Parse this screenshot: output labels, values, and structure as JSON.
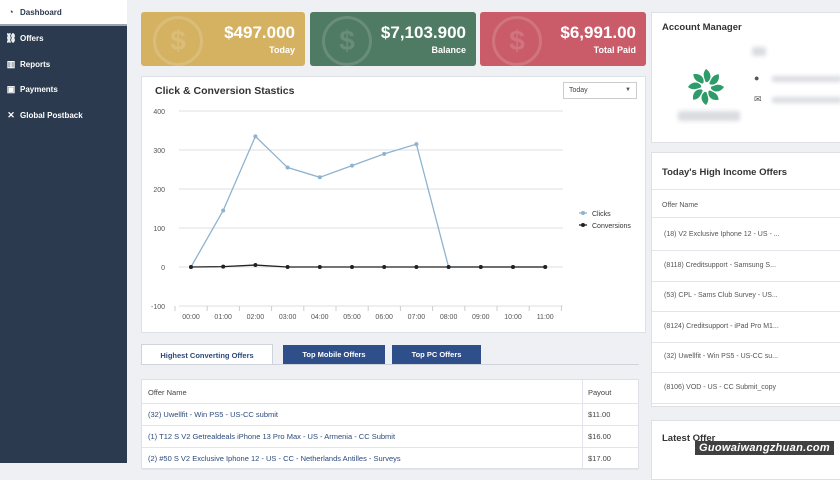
{
  "sidebar": {
    "items": [
      {
        "label": "Dashboard",
        "icon": "dashboard-icon",
        "glyph": "◔",
        "active": true
      },
      {
        "label": "Offers",
        "icon": "link-icon",
        "glyph": "⛓",
        "active": false
      },
      {
        "label": "Reports",
        "icon": "bar-chart-icon",
        "glyph": "▥",
        "active": false
      },
      {
        "label": "Payments",
        "icon": "wallet-icon",
        "glyph": "▣",
        "active": false
      },
      {
        "label": "Global Postback",
        "icon": "tools-icon",
        "glyph": "✕",
        "active": false
      }
    ]
  },
  "stats": [
    {
      "value": "$497.000",
      "label": "Today",
      "color": "#d4b262"
    },
    {
      "value": "$7,103.900",
      "label": "Balance",
      "color": "#4f7a63"
    },
    {
      "value": "$6,991.00",
      "label": "Total Paid",
      "color": "#c95c68"
    }
  ],
  "chart": {
    "title": "Click & Conversion Stastics",
    "range_select": "Today"
  },
  "chart_data": {
    "type": "line",
    "title": "Click & Conversion Stastics",
    "x": [
      "00:00",
      "01:00",
      "02:00",
      "03:00",
      "04:00",
      "05:00",
      "06:00",
      "07:00",
      "08:00",
      "09:00",
      "10:00",
      "11:00"
    ],
    "yticks": [
      400,
      300,
      200,
      100,
      0,
      -100
    ],
    "ylim": [
      -100,
      400
    ],
    "grid": true,
    "legend": "right",
    "series": [
      {
        "name": "Clicks",
        "color": "#8fb3cf",
        "values": [
          0,
          145,
          335,
          255,
          230,
          260,
          290,
          315,
          0,
          0,
          0,
          0
        ]
      },
      {
        "name": "Conversions",
        "color": "#222222",
        "values": [
          0,
          1,
          5,
          0,
          0,
          0,
          0,
          0,
          0,
          0,
          0,
          0
        ]
      }
    ]
  },
  "tabs": [
    {
      "label": "Highest Converting Offers",
      "active": true
    },
    {
      "label": "Top Mobile Offers",
      "active": false
    },
    {
      "label": "Top PC Offers",
      "active": false
    }
  ],
  "table": {
    "headers": [
      "Offer Name",
      "Payout"
    ],
    "rows": [
      {
        "name": "(32) Uwellfit - Win PS5 - US-CC submit",
        "payout": "$11.00"
      },
      {
        "name": "(1) T12 S V2 Getrealdeals iPhone 13 Pro Max - US - Armenia - CC Submit",
        "payout": "$16.00"
      },
      {
        "name": "(2) #50 S V2 Exclusive Iphone 12 - US - CC - Netherlands Antilles - Surveys",
        "payout": "$17.00"
      }
    ]
  },
  "account": {
    "title": "Account Manager"
  },
  "high_income": {
    "title": "Today's High Income Offers",
    "header": "Offer Name",
    "offers": [
      "(18) V2 Exclusive Iphone 12 - US - ...",
      "(8118) Creditsupport - Samsung S...",
      "(53) CPL - Sams Club Survey - US...",
      "(8124) Creditsupport - iPad Pro M1...",
      "(32) Uwellfit - Win PS5 - US-CC su...",
      "(8106) VOD - US - CC Submit_copy"
    ]
  },
  "latest": {
    "title": "Latest Offer"
  },
  "watermark": "Guowaiwangzhuan.com"
}
